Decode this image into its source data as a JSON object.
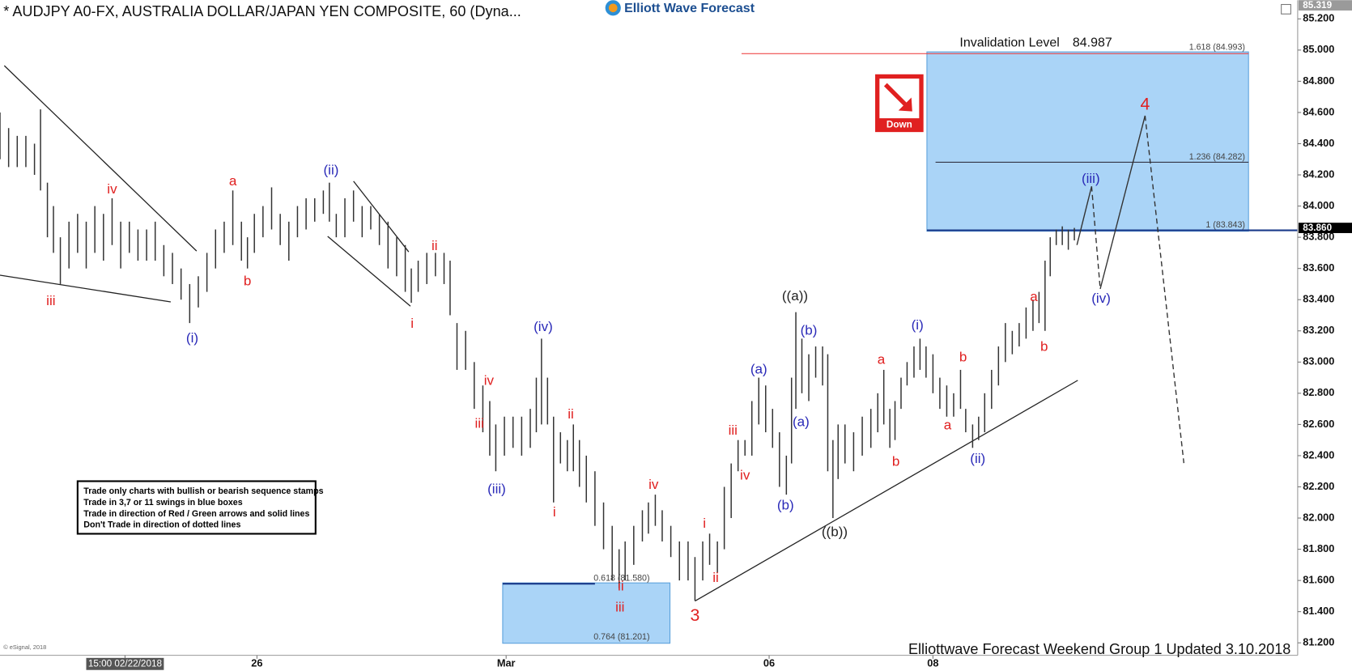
{
  "chart_data": {
    "type": "ohlc",
    "title": "* AUDJPY A0-FX, AUSTRALIA DOLLAR/JAPAN YEN COMPOSITE, 60 (Dyna...",
    "logo": "Elliott Wave Forecast",
    "footer": "Elliottwave Forecast Weekend Group 1 Updated 3.10.2018",
    "copyright": "© eSignal, 2018",
    "invalidation": {
      "label": "Invalidation Level",
      "value": "84.987"
    },
    "signal": "Down",
    "fib_upper": [
      "1.618 (84.993)",
      "1.236 (84.282)",
      "1 (83.843)"
    ],
    "fib_lower": [
      "0.618 (81.580)",
      "0.764 (81.201)"
    ],
    "rules": [
      "Trade only charts with bullish or bearish sequence stamps",
      "Trade in 3,7 or 11 swings in blue boxes",
      "Trade in direction of Red / Green arrows and solid lines",
      "Don't Trade in direction of dotted lines"
    ],
    "color": "#333333",
    "xlim": [
      0,
      1500
    ],
    "ylim": [
      81.12,
      85.32
    ],
    "xticks": [
      {
        "value": 145,
        "label": "15:00 02/22/2018"
      },
      {
        "value": 298,
        "label": "26"
      },
      {
        "value": 587,
        "label": "Mar"
      },
      {
        "value": 892,
        "label": "06"
      },
      {
        "value": 1082,
        "label": "08"
      }
    ],
    "yticks": [
      {
        "value": 81.2,
        "label": "81.200"
      },
      {
        "value": 81.4,
        "label": "81.400"
      },
      {
        "value": 81.6,
        "label": "81.600"
      },
      {
        "value": 81.8,
        "label": "81.800"
      },
      {
        "value": 82.0,
        "label": "82.000"
      },
      {
        "value": 82.2,
        "label": "82.200"
      },
      {
        "value": 82.4,
        "label": "82.400"
      },
      {
        "value": 82.6,
        "label": "82.600"
      },
      {
        "value": 82.8,
        "label": "82.800"
      },
      {
        "value": 83.0,
        "label": "83.000"
      },
      {
        "value": 83.2,
        "label": "83.200"
      },
      {
        "value": 83.4,
        "label": "83.400"
      },
      {
        "value": 83.6,
        "label": "83.600"
      },
      {
        "value": 83.8,
        "label": "83.800"
      },
      {
        "value": 84.0,
        "label": "84.000"
      },
      {
        "value": 84.2,
        "label": "84.200"
      },
      {
        "value": 84.4,
        "label": "84.400"
      },
      {
        "value": 84.6,
        "label": "84.600"
      },
      {
        "value": 84.8,
        "label": "84.800"
      },
      {
        "value": 85.0,
        "label": "85.000"
      },
      {
        "value": 85.2,
        "label": "85.200"
      }
    ],
    "top_price": {
      "value": 85.319,
      "label": "85.319"
    },
    "last_price": {
      "value": 83.86,
      "label": "83.860"
    },
    "bars": [
      {
        "x": 0,
        "high": 84.6,
        "low": 84.3
      },
      {
        "x": 10,
        "high": 84.5,
        "low": 84.25
      },
      {
        "x": 20,
        "high": 84.45,
        "low": 84.25
      },
      {
        "x": 30,
        "high": 84.45,
        "low": 84.25
      },
      {
        "x": 40,
        "high": 84.4,
        "low": 84.2
      },
      {
        "x": 47,
        "high": 84.62,
        "low": 84.1
      },
      {
        "x": 55,
        "high": 84.15,
        "low": 83.8
      },
      {
        "x": 62,
        "high": 84.0,
        "low": 83.7
      },
      {
        "x": 70,
        "high": 83.8,
        "low": 83.5
      },
      {
        "x": 80,
        "high": 83.9,
        "low": 83.6
      },
      {
        "x": 90,
        "high": 83.95,
        "low": 83.7
      },
      {
        "x": 100,
        "high": 83.9,
        "low": 83.6
      },
      {
        "x": 110,
        "high": 84.0,
        "low": 83.7
      },
      {
        "x": 120,
        "high": 83.95,
        "low": 83.65
      },
      {
        "x": 130,
        "high": 84.05,
        "low": 83.75
      },
      {
        "x": 140,
        "high": 83.9,
        "low": 83.6
      },
      {
        "x": 150,
        "high": 83.9,
        "low": 83.7
      },
      {
        "x": 160,
        "high": 83.85,
        "low": 83.65
      },
      {
        "x": 170,
        "high": 83.85,
        "low": 83.65
      },
      {
        "x": 180,
        "high": 83.9,
        "low": 83.65
      },
      {
        "x": 190,
        "high": 83.75,
        "low": 83.55
      },
      {
        "x": 200,
        "high": 83.7,
        "low": 83.5
      },
      {
        "x": 210,
        "high": 83.6,
        "low": 83.4
      },
      {
        "x": 220,
        "high": 83.5,
        "low": 83.25
      },
      {
        "x": 230,
        "high": 83.55,
        "low": 83.35
      },
      {
        "x": 240,
        "high": 83.7,
        "low": 83.45
      },
      {
        "x": 250,
        "high": 83.85,
        "low": 83.6
      },
      {
        "x": 260,
        "high": 83.9,
        "low": 83.7
      },
      {
        "x": 270,
        "high": 84.1,
        "low": 83.75
      },
      {
        "x": 280,
        "high": 83.9,
        "low": 83.65
      },
      {
        "x": 287,
        "high": 83.8,
        "low": 83.6
      },
      {
        "x": 295,
        "high": 83.95,
        "low": 83.7
      },
      {
        "x": 305,
        "high": 84.0,
        "low": 83.8
      },
      {
        "x": 315,
        "high": 84.12,
        "low": 83.85
      },
      {
        "x": 325,
        "high": 83.95,
        "low": 83.75
      },
      {
        "x": 335,
        "high": 83.9,
        "low": 83.65
      },
      {
        "x": 345,
        "high": 84.0,
        "low": 83.8
      },
      {
        "x": 355,
        "high": 84.05,
        "low": 83.85
      },
      {
        "x": 365,
        "high": 84.05,
        "low": 83.9
      },
      {
        "x": 375,
        "high": 84.1,
        "low": 83.95
      },
      {
        "x": 382,
        "high": 84.15,
        "low": 83.9
      },
      {
        "x": 390,
        "high": 83.95,
        "low": 83.8
      },
      {
        "x": 400,
        "high": 84.05,
        "low": 83.8
      },
      {
        "x": 410,
        "high": 84.1,
        "low": 83.9
      },
      {
        "x": 420,
        "high": 84.0,
        "low": 83.8
      },
      {
        "x": 430,
        "high": 84.0,
        "low": 83.85
      },
      {
        "x": 440,
        "high": 83.95,
        "low": 83.75
      },
      {
        "x": 450,
        "high": 83.9,
        "low": 83.6
      },
      {
        "x": 460,
        "high": 83.8,
        "low": 83.55
      },
      {
        "x": 470,
        "high": 83.75,
        "low": 83.45
      },
      {
        "x": 477,
        "high": 83.6,
        "low": 83.38
      },
      {
        "x": 485,
        "high": 83.65,
        "low": 83.45
      },
      {
        "x": 495,
        "high": 83.7,
        "low": 83.5
      },
      {
        "x": 505,
        "high": 83.7,
        "low": 83.55
      },
      {
        "x": 515,
        "high": 83.7,
        "low": 83.5
      },
      {
        "x": 522,
        "high": 83.65,
        "low": 83.3
      },
      {
        "x": 530,
        "high": 83.25,
        "low": 82.95
      },
      {
        "x": 540,
        "high": 83.2,
        "low": 82.95
      },
      {
        "x": 550,
        "high": 83.0,
        "low": 82.7
      },
      {
        "x": 560,
        "high": 82.85,
        "low": 82.55
      },
      {
        "x": 568,
        "high": 82.75,
        "low": 82.4
      },
      {
        "x": 575,
        "high": 82.6,
        "low": 82.3
      },
      {
        "x": 585,
        "high": 82.65,
        "low": 82.4
      },
      {
        "x": 595,
        "high": 82.65,
        "low": 82.45
      },
      {
        "x": 605,
        "high": 82.65,
        "low": 82.4
      },
      {
        "x": 615,
        "high": 82.7,
        "low": 82.45
      },
      {
        "x": 622,
        "high": 82.9,
        "low": 82.55
      },
      {
        "x": 628,
        "high": 83.15,
        "low": 82.6
      },
      {
        "x": 635,
        "high": 82.9,
        "low": 82.6
      },
      {
        "x": 642,
        "high": 82.65,
        "low": 82.1
      },
      {
        "x": 650,
        "high": 82.55,
        "low": 82.35
      },
      {
        "x": 658,
        "high": 82.5,
        "low": 82.3
      },
      {
        "x": 665,
        "high": 82.6,
        "low": 82.3
      },
      {
        "x": 672,
        "high": 82.5,
        "low": 82.2
      },
      {
        "x": 680,
        "high": 82.4,
        "low": 82.1
      },
      {
        "x": 690,
        "high": 82.3,
        "low": 81.95
      },
      {
        "x": 700,
        "high": 82.1,
        "low": 81.8
      },
      {
        "x": 710,
        "high": 81.95,
        "low": 81.6
      },
      {
        "x": 718,
        "high": 81.8,
        "low": 81.55
      },
      {
        "x": 725,
        "high": 81.85,
        "low": 81.6
      },
      {
        "x": 735,
        "high": 81.95,
        "low": 81.7
      },
      {
        "x": 745,
        "high": 82.05,
        "low": 81.85
      },
      {
        "x": 752,
        "high": 82.1,
        "low": 81.9
      },
      {
        "x": 760,
        "high": 82.15,
        "low": 81.95
      },
      {
        "x": 768,
        "high": 82.05,
        "low": 81.85
      },
      {
        "x": 778,
        "high": 81.95,
        "low": 81.75
      },
      {
        "x": 788,
        "high": 81.85,
        "low": 81.6
      },
      {
        "x": 798,
        "high": 81.85,
        "low": 81.6
      },
      {
        "x": 806,
        "high": 81.75,
        "low": 81.47
      },
      {
        "x": 815,
        "high": 81.85,
        "low": 81.6
      },
      {
        "x": 823,
        "high": 81.9,
        "low": 81.7
      },
      {
        "x": 832,
        "high": 81.85,
        "low": 81.65
      },
      {
        "x": 840,
        "high": 82.2,
        "low": 81.8
      },
      {
        "x": 848,
        "high": 82.35,
        "low": 82.0
      },
      {
        "x": 856,
        "high": 82.5,
        "low": 82.3
      },
      {
        "x": 864,
        "high": 82.5,
        "low": 82.4
      },
      {
        "x": 872,
        "high": 82.75,
        "low": 82.4
      },
      {
        "x": 880,
        "high": 82.9,
        "low": 82.6
      },
      {
        "x": 888,
        "high": 82.85,
        "low": 82.55
      },
      {
        "x": 896,
        "high": 82.7,
        "low": 82.45
      },
      {
        "x": 904,
        "high": 82.55,
        "low": 82.2
      },
      {
        "x": 912,
        "high": 82.4,
        "low": 82.15
      },
      {
        "x": 918,
        "high": 82.9,
        "low": 82.35
      },
      {
        "x": 923,
        "high": 83.32,
        "low": 82.7
      },
      {
        "x": 930,
        "high": 83.15,
        "low": 82.8
      },
      {
        "x": 938,
        "high": 83.05,
        "low": 82.75
      },
      {
        "x": 946,
        "high": 83.1,
        "low": 82.9
      },
      {
        "x": 954,
        "high": 83.1,
        "low": 82.85
      },
      {
        "x": 960,
        "high": 83.05,
        "low": 82.3
      },
      {
        "x": 966,
        "high": 82.5,
        "low": 82.0
      },
      {
        "x": 972,
        "high": 82.6,
        "low": 82.25
      },
      {
        "x": 980,
        "high": 82.6,
        "low": 82.35
      },
      {
        "x": 990,
        "high": 82.55,
        "low": 82.3
      },
      {
        "x": 1000,
        "high": 82.65,
        "low": 82.4
      },
      {
        "x": 1010,
        "high": 82.7,
        "low": 82.45
      },
      {
        "x": 1018,
        "high": 82.8,
        "low": 82.55
      },
      {
        "x": 1025,
        "high": 82.95,
        "low": 82.6
      },
      {
        "x": 1032,
        "high": 82.7,
        "low": 82.45
      },
      {
        "x": 1038,
        "high": 82.75,
        "low": 82.5
      },
      {
        "x": 1045,
        "high": 82.9,
        "low": 82.7
      },
      {
        "x": 1052,
        "high": 83.0,
        "low": 82.85
      },
      {
        "x": 1060,
        "high": 83.1,
        "low": 82.9
      },
      {
        "x": 1067,
        "high": 83.15,
        "low": 82.95
      },
      {
        "x": 1074,
        "high": 83.1,
        "low": 82.9
      },
      {
        "x": 1082,
        "high": 83.05,
        "low": 82.8
      },
      {
        "x": 1090,
        "high": 82.9,
        "low": 82.7
      },
      {
        "x": 1098,
        "high": 82.85,
        "low": 82.65
      },
      {
        "x": 1106,
        "high": 82.8,
        "low": 82.65
      },
      {
        "x": 1114,
        "high": 82.95,
        "low": 82.7
      },
      {
        "x": 1120,
        "high": 82.7,
        "low": 82.55
      },
      {
        "x": 1128,
        "high": 82.6,
        "low": 82.45
      },
      {
        "x": 1135,
        "high": 82.65,
        "low": 82.5
      },
      {
        "x": 1142,
        "high": 82.8,
        "low": 82.55
      },
      {
        "x": 1150,
        "high": 82.95,
        "low": 82.7
      },
      {
        "x": 1158,
        "high": 83.1,
        "low": 82.85
      },
      {
        "x": 1166,
        "high": 83.25,
        "low": 83.0
      },
      {
        "x": 1174,
        "high": 83.2,
        "low": 83.05
      },
      {
        "x": 1182,
        "high": 83.25,
        "low": 83.1
      },
      {
        "x": 1190,
        "high": 83.35,
        "low": 83.15
      },
      {
        "x": 1198,
        "high": 83.4,
        "low": 83.2
      },
      {
        "x": 1205,
        "high": 83.45,
        "low": 83.25
      },
      {
        "x": 1212,
        "high": 83.65,
        "low": 83.2
      },
      {
        "x": 1218,
        "high": 83.8,
        "low": 83.55
      },
      {
        "x": 1225,
        "high": 83.85,
        "low": 83.75
      },
      {
        "x": 1232,
        "high": 83.87,
        "low": 83.75
      },
      {
        "x": 1239,
        "high": 83.85,
        "low": 83.72
      },
      {
        "x": 1246,
        "high": 83.86,
        "low": 83.78
      }
    ],
    "annotations": [
      {
        "text": "iv",
        "x": 130,
        "y": 84.105,
        "color": "#e02020"
      },
      {
        "text": "iii",
        "x": 59,
        "y": 83.387,
        "color": "#e02020"
      },
      {
        "text": "(i)",
        "x": 223,
        "y": 83.149,
        "color": "#2a2ab8"
      },
      {
        "text": "a",
        "x": 270,
        "y": 84.155,
        "color": "#e02020"
      },
      {
        "text": "b",
        "x": 287,
        "y": 83.514,
        "color": "#e02020"
      },
      {
        "text": "(ii)",
        "x": 384,
        "y": 84.227,
        "color": "#2a2ab8"
      },
      {
        "text": "ii",
        "x": 504,
        "y": 83.74,
        "color": "#e02020"
      },
      {
        "text": "i",
        "x": 478,
        "y": 83.243,
        "color": "#e02020"
      },
      {
        "text": "iv",
        "x": 567,
        "y": 82.878,
        "color": "#e02020"
      },
      {
        "text": "iii",
        "x": 556,
        "y": 82.602,
        "color": "#e02020"
      },
      {
        "text": "(iii)",
        "x": 576,
        "y": 82.182,
        "color": "#2a2ab8"
      },
      {
        "text": "(iv)",
        "x": 630,
        "y": 83.221,
        "color": "#2a2ab8"
      },
      {
        "text": "ii",
        "x": 662,
        "y": 82.663,
        "color": "#e02020"
      },
      {
        "text": "i",
        "x": 643,
        "y": 82.033,
        "color": "#e02020"
      },
      {
        "text": "iv",
        "x": 758,
        "y": 82.21,
        "color": "#e02020"
      },
      {
        "text": "ii",
        "x": 720,
        "y": 81.558,
        "color": "#e02020"
      },
      {
        "text": "iii",
        "x": 719,
        "y": 81.425,
        "color": "#e02020"
      },
      {
        "text": "3",
        "x": 806,
        "y": 81.37,
        "color": "#e02020"
      },
      {
        "text": "i",
        "x": 817,
        "y": 81.961,
        "color": "#e02020"
      },
      {
        "text": "ii",
        "x": 830,
        "y": 81.613,
        "color": "#e02020"
      },
      {
        "text": "iii",
        "x": 850,
        "y": 82.558,
        "color": "#e02020"
      },
      {
        "text": "iv",
        "x": 864,
        "y": 82.271,
        "color": "#e02020"
      },
      {
        "text": "(a)",
        "x": 880,
        "y": 82.95,
        "color": "#2a2ab8"
      },
      {
        "text": "(b)",
        "x": 911,
        "y": 82.077,
        "color": "#2a2ab8"
      },
      {
        "text": "((a))",
        "x": 922,
        "y": 83.42,
        "color": "#222222"
      },
      {
        "text": "(b)",
        "x": 938,
        "y": 83.199,
        "color": "#2a2ab8"
      },
      {
        "text": "(a)",
        "x": 929,
        "y": 82.613,
        "color": "#2a2ab8"
      },
      {
        "text": "((b))",
        "x": 968,
        "y": 81.906,
        "color": "#222222"
      },
      {
        "text": "a",
        "x": 1022,
        "y": 83.011,
        "color": "#e02020"
      },
      {
        "text": "b",
        "x": 1039,
        "y": 82.359,
        "color": "#e02020"
      },
      {
        "text": "(i)",
        "x": 1064,
        "y": 83.232,
        "color": "#2a2ab8"
      },
      {
        "text": "b",
        "x": 1117,
        "y": 83.028,
        "color": "#e02020"
      },
      {
        "text": "a",
        "x": 1099,
        "y": 82.591,
        "color": "#e02020"
      },
      {
        "text": "(ii)",
        "x": 1134,
        "y": 82.376,
        "color": "#2a2ab8"
      },
      {
        "text": "a",
        "x": 1199,
        "y": 83.414,
        "color": "#e02020"
      },
      {
        "text": "b",
        "x": 1211,
        "y": 83.094,
        "color": "#e02020"
      },
      {
        "text": "(iii)",
        "x": 1265,
        "y": 84.171,
        "color": "#2a2ab8"
      },
      {
        "text": "(iv)",
        "x": 1277,
        "y": 83.403,
        "color": "#2a2ab8"
      },
      {
        "text": "4",
        "x": 1328,
        "y": 84.646,
        "color": "#e02020"
      }
    ]
  }
}
